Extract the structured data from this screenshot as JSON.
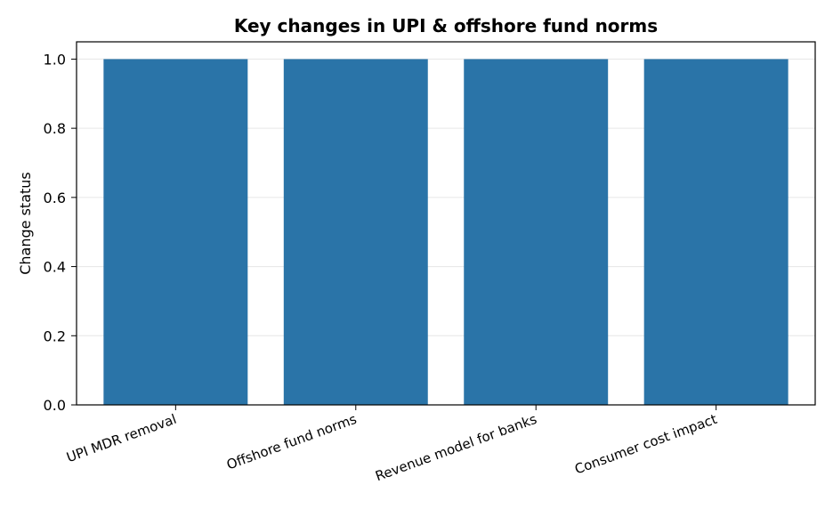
{
  "chart_data": {
    "type": "bar",
    "title": "Key changes in UPI & offshore fund norms",
    "xlabel": "",
    "ylabel": "Change status",
    "categories": [
      "UPI MDR removal",
      "Offshore fund norms",
      "Revenue model for banks",
      "Consumer cost impact"
    ],
    "values": [
      1,
      1,
      1,
      1
    ],
    "ylim": [
      0,
      1.05
    ],
    "yticks": [
      "0.0",
      "0.2",
      "0.4",
      "0.6",
      "0.8",
      "1.0"
    ],
    "grid": "y",
    "bar_color": "#2a74a8",
    "grid_color": "#e6e6e6",
    "axis_color": "#000000"
  }
}
